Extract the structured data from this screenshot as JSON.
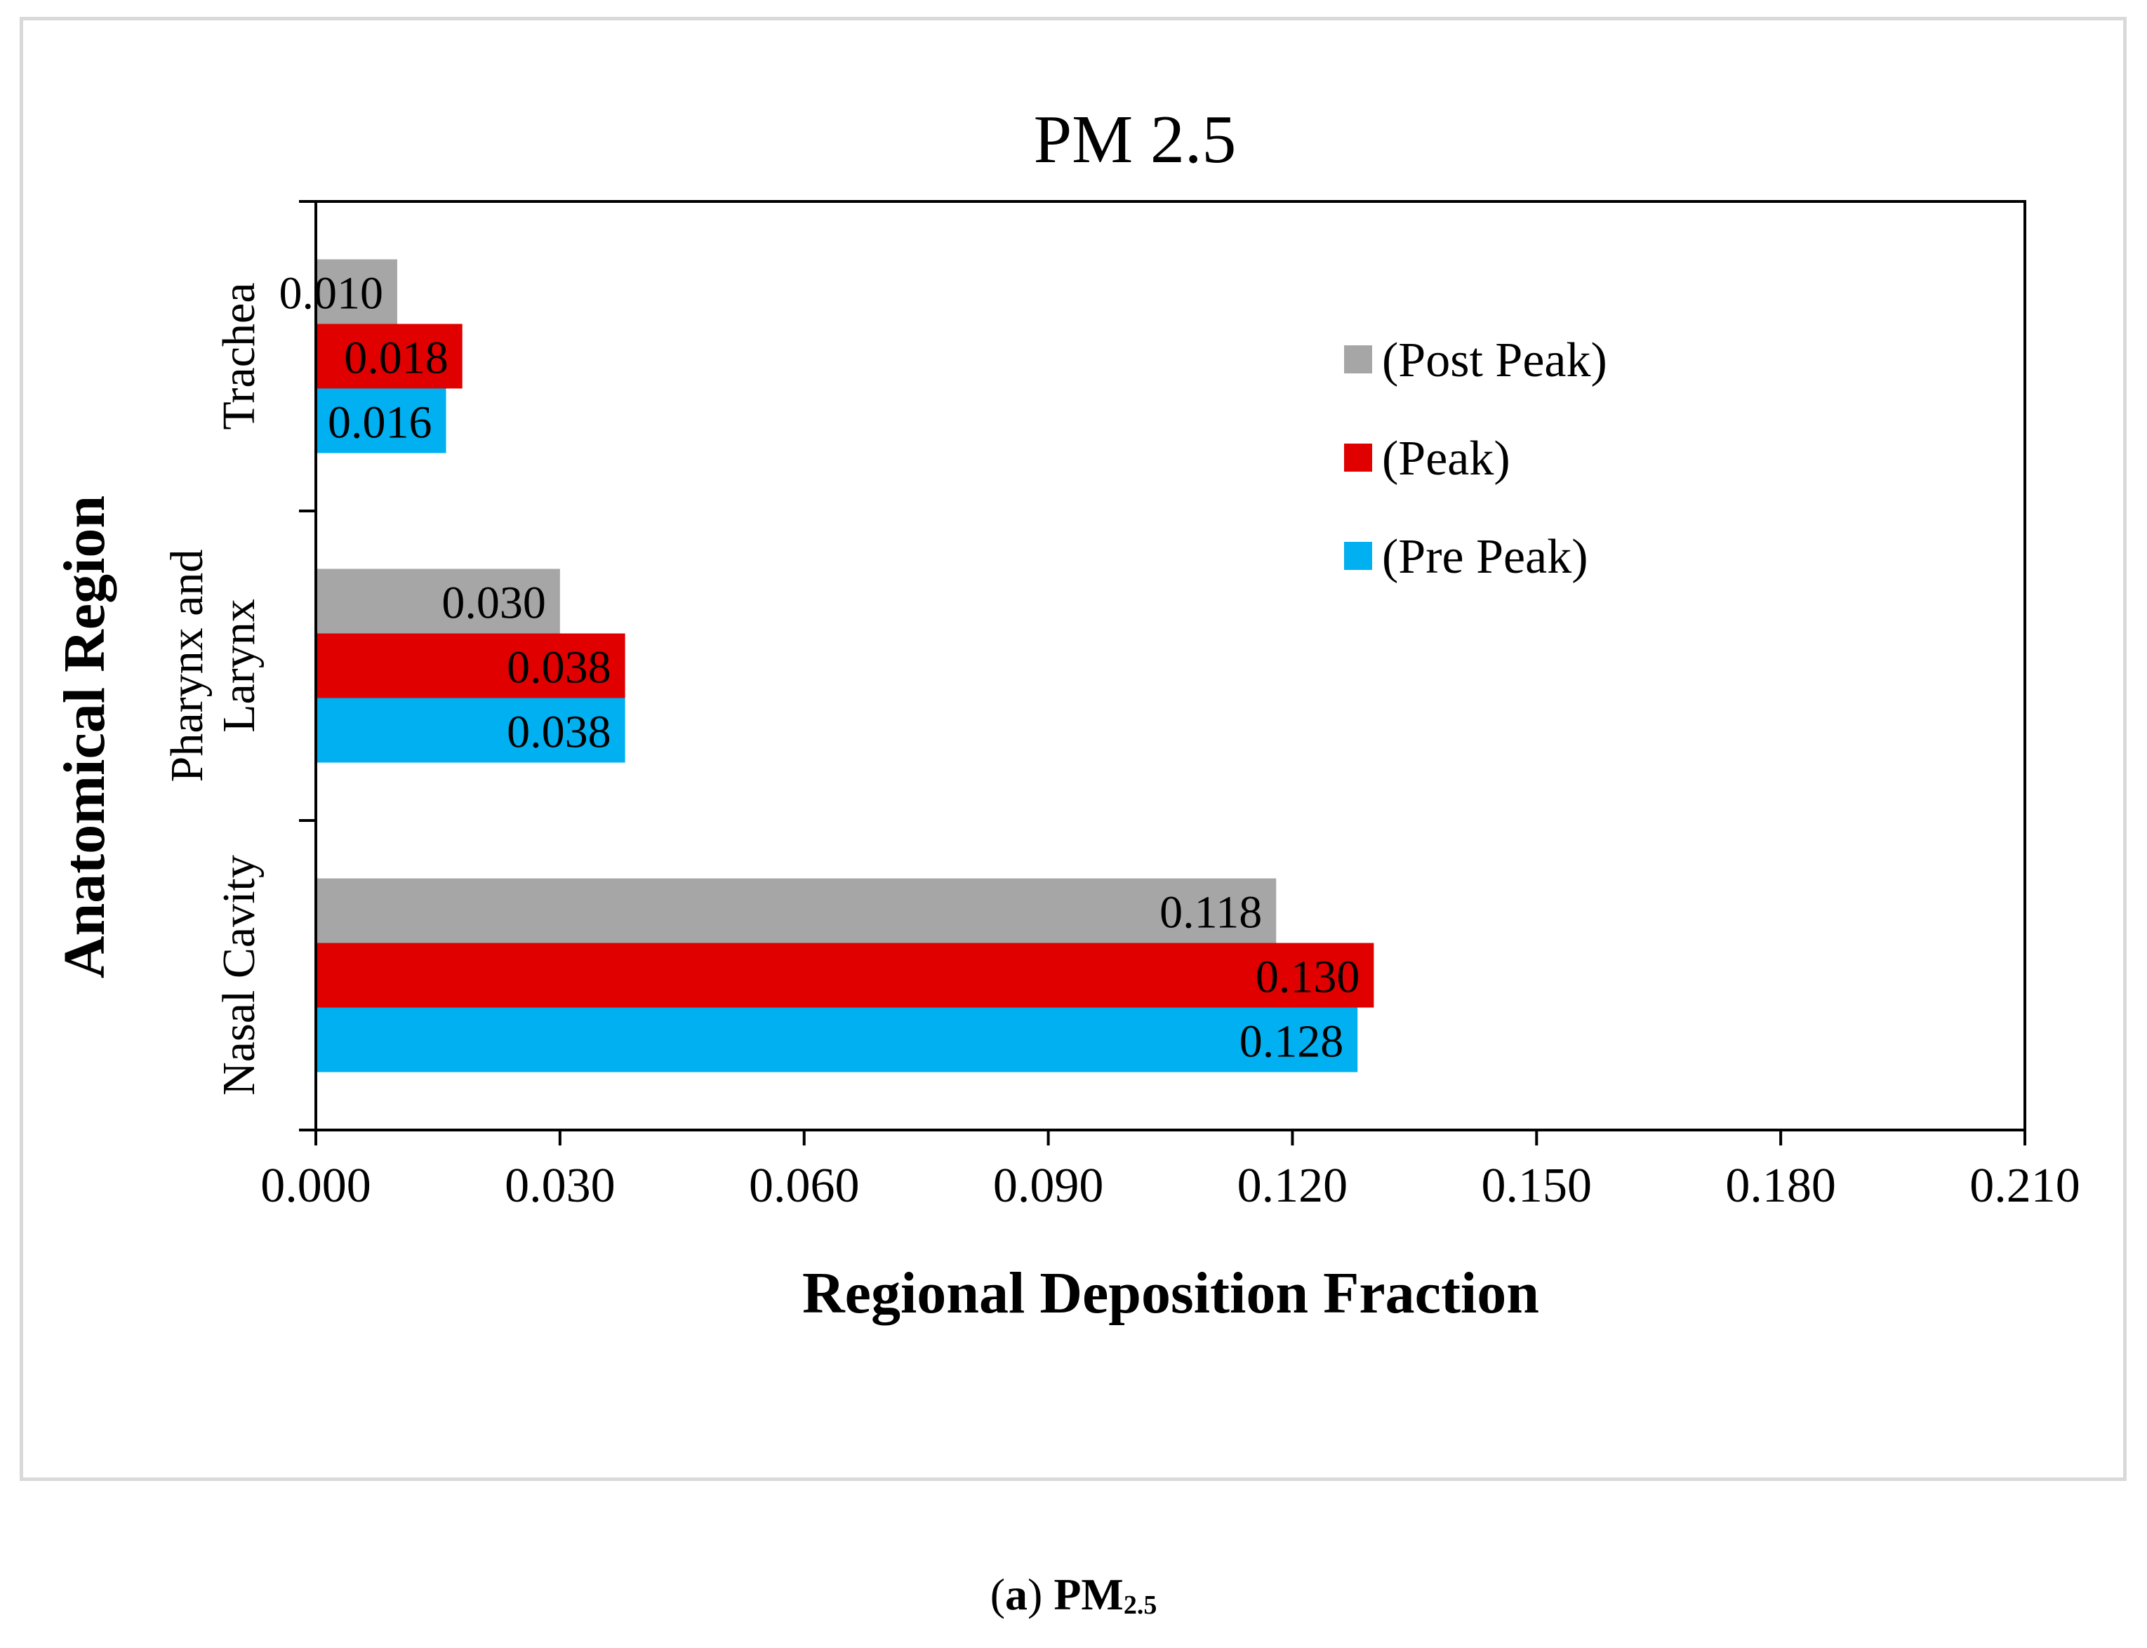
{
  "chart_data": {
    "type": "bar",
    "orientation": "horizontal",
    "title": "PM 2.5",
    "xlabel": "Regional Deposition Fraction",
    "ylabel": "Anatomical Region",
    "categories": [
      "Nasal Cavity",
      "Pharynx and Larynx",
      "Trachea"
    ],
    "category_label_lines": [
      [
        "Nasal Cavity"
      ],
      [
        "Pharynx and",
        "Larynx"
      ],
      [
        "Trachea"
      ]
    ],
    "xlim": [
      0,
      0.21
    ],
    "xticks": [
      0.0,
      0.03,
      0.06,
      0.09,
      0.12,
      0.15,
      0.18,
      0.21
    ],
    "xtick_labels": [
      "0.000",
      "0.030",
      "0.060",
      "0.090",
      "0.120",
      "0.150",
      "0.180",
      "0.210"
    ],
    "series": [
      {
        "name": "(Post Peak)",
        "color": "#a6a6a6",
        "values": [
          0.118,
          0.03,
          0.01
        ],
        "labels": [
          "0.118",
          "0.030",
          "0.010"
        ]
      },
      {
        "name": "(Peak)",
        "color": "#e00000",
        "values": [
          0.13,
          0.038,
          0.018
        ],
        "labels": [
          "0.130",
          "0.038",
          "0.018"
        ]
      },
      {
        "name": "(Pre Peak)",
        "color": "#00b0f0",
        "values": [
          0.128,
          0.038,
          0.016
        ],
        "labels": [
          "0.128",
          "0.038",
          "0.016"
        ]
      }
    ],
    "legend_position": "top-right",
    "grid": false
  },
  "caption": {
    "prefix_open": "(",
    "letter": "a",
    "prefix_close": ")",
    "main": " PM",
    "subscript": "2.5"
  }
}
